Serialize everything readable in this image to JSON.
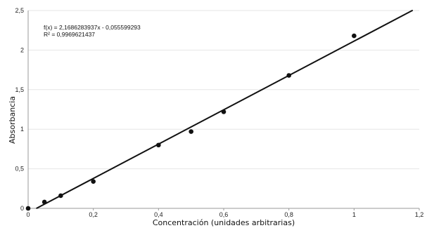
{
  "chart_data": {
    "type": "scatter",
    "title": "",
    "xlabel": "Concentración (unidades arbitrarias)",
    "ylabel": "Absorbancia",
    "xlim": [
      0,
      1.2
    ],
    "ylim": [
      0,
      2.5
    ],
    "x_ticks": [
      {
        "value": 0,
        "label": "0"
      },
      {
        "value": 0.2,
        "label": "0,2"
      },
      {
        "value": 0.4,
        "label": "0,4"
      },
      {
        "value": 0.6,
        "label": "0,6"
      },
      {
        "value": 0.8,
        "label": "0,8"
      },
      {
        "value": 1,
        "label": "1"
      },
      {
        "value": 1.2,
        "label": "1,2"
      }
    ],
    "y_ticks": [
      {
        "value": 0,
        "label": "0"
      },
      {
        "value": 0.5,
        "label": "0,5"
      },
      {
        "value": 1,
        "label": "1"
      },
      {
        "value": 1.5,
        "label": "1,5"
      },
      {
        "value": 2,
        "label": "2"
      },
      {
        "value": 2.5,
        "label": "2,5"
      }
    ],
    "grid": {
      "horizontal": true,
      "vertical": false
    },
    "series": [
      {
        "points": [
          {
            "x": 0,
            "y": 0
          },
          {
            "x": 0.05,
            "y": 0.08
          },
          {
            "x": 0.1,
            "y": 0.16
          },
          {
            "x": 0.2,
            "y": 0.34
          },
          {
            "x": 0.4,
            "y": 0.8
          },
          {
            "x": 0.5,
            "y": 0.97
          },
          {
            "x": 0.6,
            "y": 1.22
          },
          {
            "x": 0.8,
            "y": 1.68
          },
          {
            "x": 1,
            "y": 2.18
          }
        ],
        "color": "#111111"
      }
    ],
    "trendline": {
      "slope": 2.1686283937,
      "intercept": -0.055599293,
      "x_range": [
        0.025,
        1.18
      ],
      "color": "#111111",
      "equation_label": "f(x) = 2,1686283937x - 0,055599293",
      "r2_label": "R² = 0,9969621437"
    },
    "gridline_color": "#e6e6e6",
    "axis_color": "#9a9a9a"
  }
}
